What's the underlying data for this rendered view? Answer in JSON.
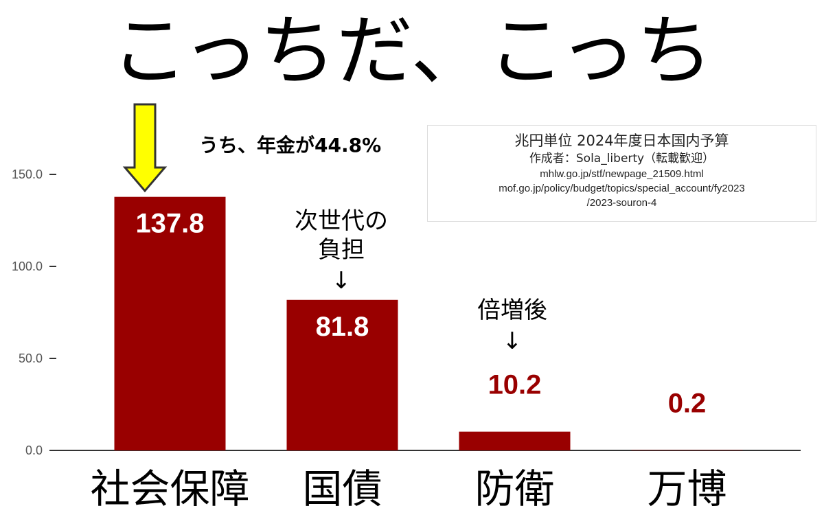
{
  "headline": "こっちだ、こっち",
  "source_box": {
    "line1": "兆円単位 2024年度日本国内予算",
    "line2": "作成者：Sola_liberty（転載歓迎）",
    "line3": "mhlw.go.jp/stf/newpage_21509.html",
    "line4": "mof.go.jp/policy/budget/topics/special_account/fy2023",
    "line5": "/2023-souron-4"
  },
  "annotations": {
    "pension_note": "うち、年金が44.8%",
    "debt_note_line1": "次世代の",
    "debt_note_line2": "負担",
    "debt_arrow": "↓",
    "defense_note": "倍増後",
    "defense_arrow": "↓"
  },
  "colors": {
    "bar": "#990000",
    "arrow_fill": "#ffff00",
    "arrow_stroke": "#333333"
  },
  "chart_data": {
    "type": "bar",
    "categories": [
      "社会保障",
      "国債",
      "防衛",
      "万博"
    ],
    "values": [
      137.8,
      81.8,
      10.2,
      0.2
    ],
    "value_labels": [
      "137.8",
      "81.8",
      "10.2",
      "0.2"
    ],
    "yticks": [
      "0.0",
      "50.0",
      "100.0",
      "150.0"
    ],
    "ytick_values": [
      0,
      50,
      100,
      150
    ],
    "ylim": [
      0,
      150
    ],
    "grid": false,
    "title": "",
    "xlabel": "",
    "ylabel": ""
  }
}
